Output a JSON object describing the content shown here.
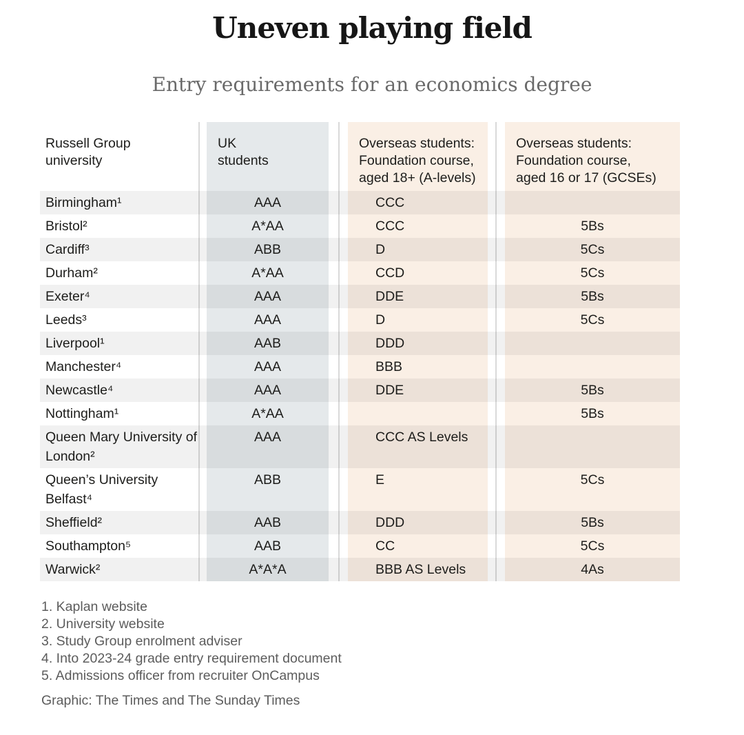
{
  "header": {
    "title": "Uneven playing field",
    "subtitle": "Entry requirements for an economics degree"
  },
  "chart_data": {
    "type": "table",
    "title": "Uneven playing field",
    "subtitle": "Entry requirements for an economics degree",
    "col_headers": [
      "Russell Group\nuniversity",
      "UK\nstudents",
      "Overseas students:\nFoundation course,\naged 18+ (A-levels)",
      "Overseas students:\nFoundation course,\naged 16 or 17 (GCSEs)"
    ],
    "rows": [
      [
        "Birmingham¹",
        "AAA",
        "CCC",
        ""
      ],
      [
        "Bristol²",
        "A*AA",
        "CCC",
        "5Bs"
      ],
      [
        "Cardiff³",
        "ABB",
        "D",
        "5Cs"
      ],
      [
        "Durham²",
        "A*AA",
        "CCD",
        "5Cs"
      ],
      [
        "Exeter⁴",
        "AAA",
        "DDE",
        "5Bs"
      ],
      [
        "Leeds³",
        "AAA",
        "D",
        "5Cs"
      ],
      [
        "Liverpool¹",
        "AAB",
        "DDD",
        ""
      ],
      [
        "Manchester⁴",
        "AAA",
        "BBB",
        ""
      ],
      [
        "Newcastle⁴",
        "AAA",
        "DDE",
        "5Bs"
      ],
      [
        "Nottingham¹",
        "A*AA",
        "",
        "5Bs"
      ],
      [
        "Queen Mary University of London²",
        "AAA",
        "CCC AS Levels",
        ""
      ],
      [
        "Queen’s University Belfast⁴",
        "ABB",
        "E",
        "5Cs"
      ],
      [
        "Sheffield²",
        "AAB",
        "DDD",
        "5Bs"
      ],
      [
        "Southampton⁵",
        "AAB",
        "CC",
        "5Cs"
      ],
      [
        "Warwick²",
        "A*A*A",
        "BBB AS Levels",
        "4As"
      ]
    ],
    "layout_hints": {
      "striped_rows": "even indices shaded",
      "uk_column_bg": "#e5e9eb",
      "overseas_column_bg": "#faefe5",
      "row_stripe_overlay": "rgba(20,18,16,0.057)",
      "divider_color": "#d9d9d9",
      "text_color": "#1d1d1b"
    }
  },
  "footnotes": [
    "1. Kaplan website",
    "2. University website",
    "3. Study Group enrolment adviser",
    "4. Into 2023-24 grade entry requirement document",
    "5. Admissions officer from recruiter OnCampus"
  ],
  "credit": "Graphic: The Times and The Sunday Times"
}
